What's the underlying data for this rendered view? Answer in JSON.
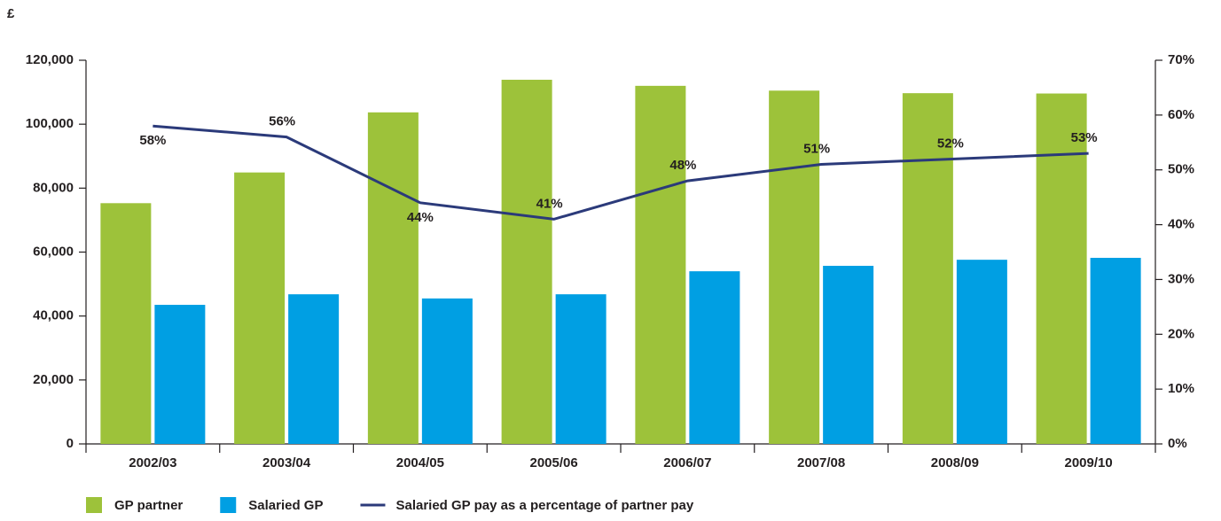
{
  "chart_data": {
    "type": "bar",
    "y_label": "£",
    "categories": [
      "2002/03",
      "2003/04",
      "2004/05",
      "2005/06",
      "2006/07",
      "2007/08",
      "2008/09",
      "2009/10"
    ],
    "series": [
      {
        "name": "GP partner",
        "color": "#9dc23a",
        "values": [
          75300,
          84900,
          103700,
          113900,
          112000,
          110500,
          109700,
          109600
        ]
      },
      {
        "name": "Salaried GP",
        "color": "#009fe3",
        "values": [
          43500,
          46800,
          45500,
          46800,
          54000,
          55700,
          57600,
          58200
        ]
      },
      {
        "name": "Salaried GP pay as a percentage of partner pay",
        "color": "#2b3a7a",
        "type": "line",
        "axis": "y2",
        "values": [
          58,
          56,
          44,
          41,
          48,
          51,
          52,
          53
        ],
        "value_labels": [
          "58%",
          "56%",
          "44%",
          "41%",
          "48%",
          "51%",
          "52%",
          "53%"
        ]
      }
    ],
    "ylim": [
      0,
      120000
    ],
    "yticks": [
      0,
      {
        "value": 20000,
        "label": "20,000"
      },
      {
        "value": 40000,
        "label": "40,000"
      },
      {
        "value": 60000,
        "label": "60,000"
      },
      {
        "value": 80000,
        "label": "80,000"
      },
      {
        "value": 100000,
        "label": "100,000"
      },
      {
        "value": 120000,
        "label": "120,000"
      }
    ],
    "y2lim": [
      0,
      70
    ],
    "y2ticks": [
      {
        "value": 0,
        "label": "0%"
      },
      {
        "value": 10,
        "label": "10%"
      },
      {
        "value": 20,
        "label": "20%"
      },
      {
        "value": 30,
        "label": "30%"
      },
      {
        "value": 40,
        "label": "40%"
      },
      {
        "value": 50,
        "label": "50%"
      },
      {
        "value": 60,
        "label": "60%"
      },
      {
        "value": 70,
        "label": "70%"
      }
    ],
    "grid": false
  }
}
